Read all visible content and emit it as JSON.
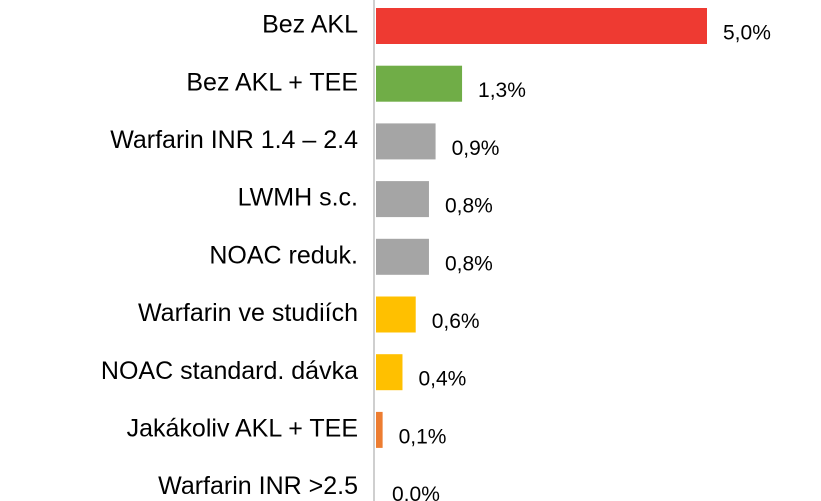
{
  "chart_data": {
    "type": "bar",
    "orientation": "horizontal",
    "categories": [
      "Bez AKL",
      "Bez AKL + TEE",
      "Warfarin INR 1.4 – 2.4",
      "LWMH s.c.",
      "NOAC reduk.",
      "Warfarin ve studiích",
      "NOAC standard. dávka",
      "Jakákoliv AKL + TEE",
      "Warfarin INR >2.5"
    ],
    "values": [
      5.0,
      1.3,
      0.9,
      0.8,
      0.8,
      0.6,
      0.4,
      0.1,
      0.0
    ],
    "value_labels": [
      "5,0%",
      "1,3%",
      "0,9%",
      "0,8%",
      "0,8%",
      "0,6%",
      "0,4%",
      "0,1%",
      "0,0%"
    ],
    "colors": [
      "#ee3a32",
      "#70ad47",
      "#a5a5a5",
      "#a5a5a5",
      "#a5a5a5",
      "#ffc000",
      "#ffc000",
      "#ed7d31",
      "#a5a5a5"
    ]
  }
}
